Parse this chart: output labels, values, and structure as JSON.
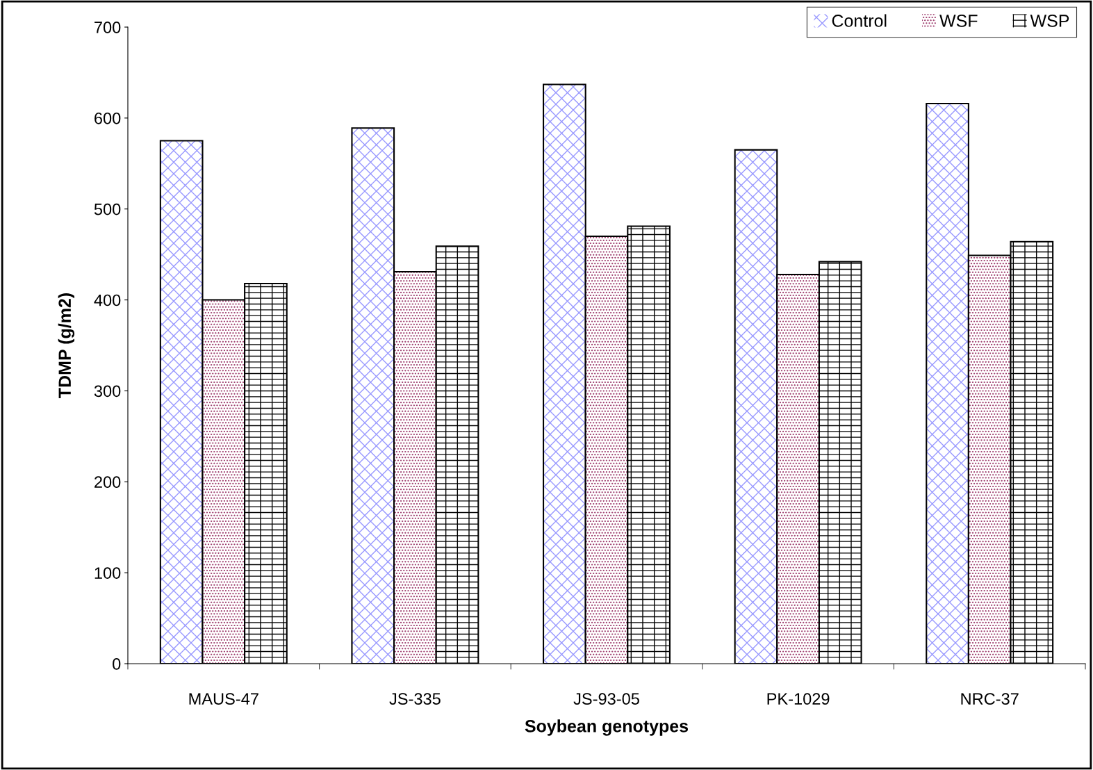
{
  "chart_data": {
    "type": "bar",
    "xlabel": "Soybean genotypes",
    "ylabel": "TDMP (g/m2)",
    "categories": [
      "MAUS-47",
      "JS-335",
      "JS-93-05",
      "PK-1029",
      "NRC-37"
    ],
    "series": [
      {
        "name": "Control",
        "color": "#9999ff",
        "values": [
          575,
          589,
          637,
          565,
          616
        ]
      },
      {
        "name": "WSF",
        "color": "#993366",
        "values": [
          400,
          431,
          470,
          428,
          449
        ]
      },
      {
        "name": "WSP",
        "color": "#000000",
        "values": [
          418,
          459,
          481,
          442,
          464
        ]
      }
    ],
    "ylim": [
      0,
      700
    ],
    "yticks": [
      0,
      100,
      200,
      300,
      400,
      500,
      600,
      700
    ],
    "grid": false,
    "legend": "top right"
  }
}
